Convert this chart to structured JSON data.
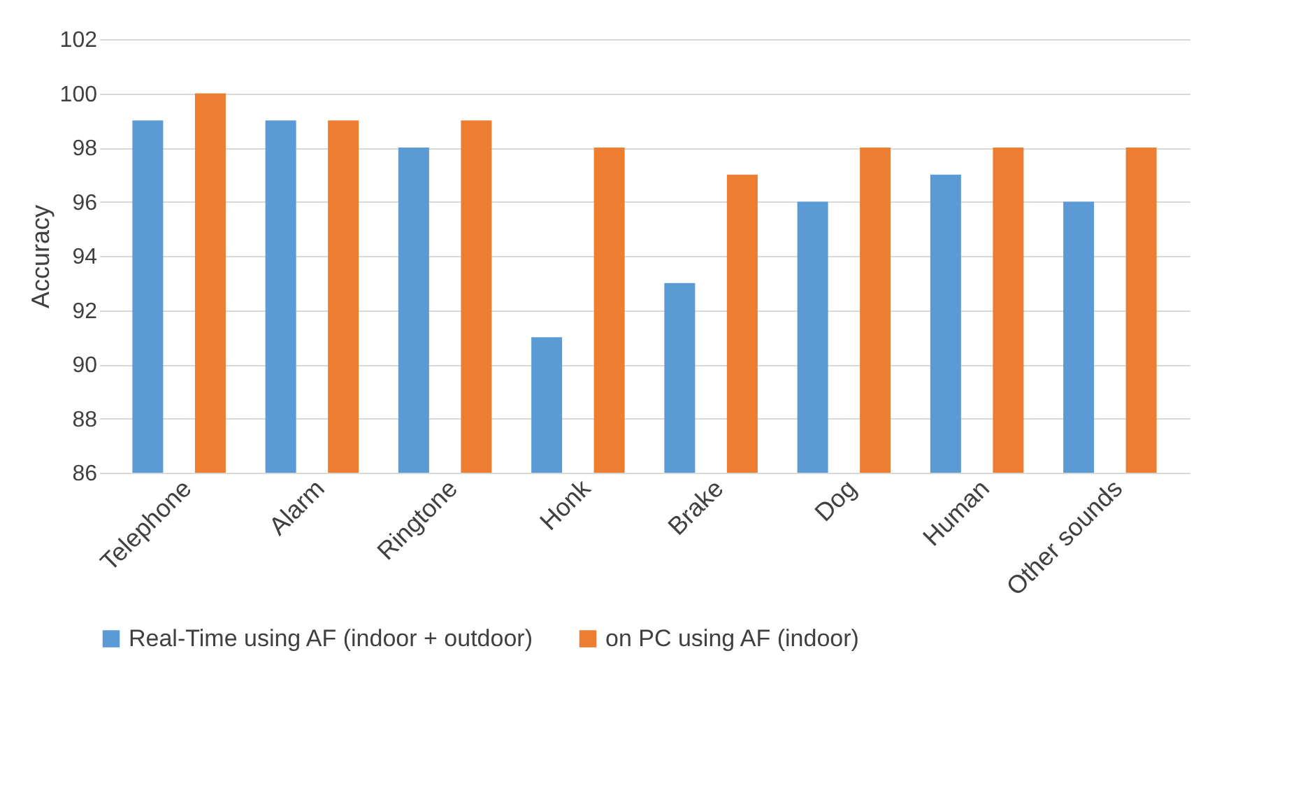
{
  "chart_data": {
    "type": "bar",
    "ylabel": "Accuracy",
    "categories": [
      "Telephone",
      "Alarm",
      "Ringtone",
      "Honk",
      "Brake",
      "Dog",
      "Human",
      "Other sounds"
    ],
    "series": [
      {
        "name": "Real-Time using AF (indoor + outdoor)",
        "color": "#5b9bd5",
        "values": [
          99,
          99,
          98,
          91,
          93,
          96,
          97,
          96
        ]
      },
      {
        "name": "on PC using AF (indoor)",
        "color": "#ed7d31",
        "values": [
          100,
          99,
          99,
          98,
          97,
          98,
          98,
          98
        ]
      }
    ],
    "ylim": [
      86,
      102
    ],
    "yticks": [
      86,
      88,
      90,
      92,
      94,
      96,
      98,
      100,
      102
    ],
    "grid": "y",
    "legend": "bottom"
  }
}
